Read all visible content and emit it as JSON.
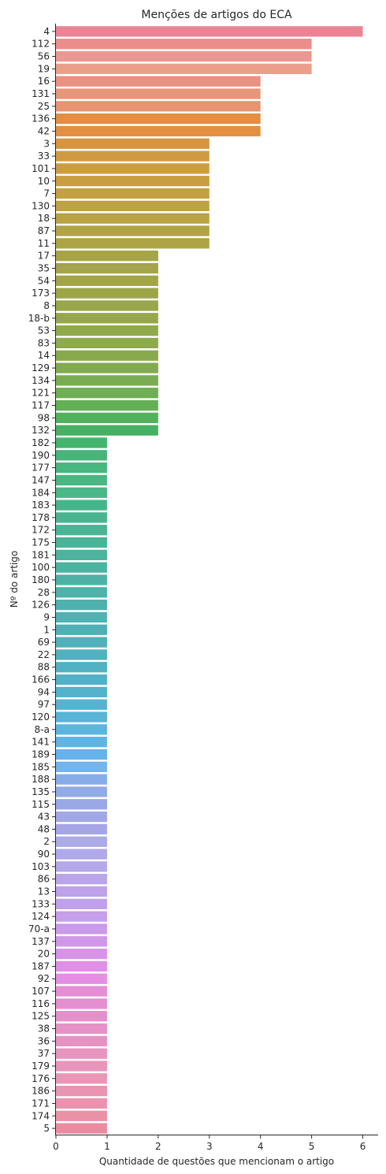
{
  "chart_data": {
    "type": "bar",
    "orientation": "horizontal",
    "title": "Menções de artigos do ECA",
    "xlabel": "Quantidade de questões que mencionam o artigo",
    "ylabel": "Nº do artigo",
    "xlim": [
      0,
      6.3
    ],
    "xticks": [
      0,
      1,
      2,
      3,
      4,
      5,
      6
    ],
    "grid": false,
    "categories": [
      "4",
      "112",
      "56",
      "19",
      "16",
      "131",
      "25",
      "136",
      "42",
      "3",
      "33",
      "101",
      "10",
      "7",
      "130",
      "18",
      "87",
      "11",
      "17",
      "35",
      "54",
      "173",
      "8",
      "18-b",
      "53",
      "83",
      "14",
      "129",
      "134",
      "121",
      "117",
      "98",
      "132",
      "182",
      "190",
      "177",
      "147",
      "184",
      "183",
      "178",
      "172",
      "175",
      "181",
      "100",
      "180",
      "28",
      "126",
      "9",
      "1",
      "69",
      "22",
      "88",
      "166",
      "94",
      "97",
      "120",
      "8-a",
      "141",
      "189",
      "185",
      "188",
      "135",
      "115",
      "43",
      "48",
      "2",
      "90",
      "103",
      "86",
      "13",
      "133",
      "124",
      "70-a",
      "137",
      "20",
      "187",
      "92",
      "107",
      "116",
      "125",
      "38",
      "36",
      "37",
      "179",
      "176",
      "186",
      "171",
      "174",
      "5"
    ],
    "values": [
      6,
      5,
      5,
      5,
      4,
      4,
      4,
      4,
      4,
      3,
      3,
      3,
      3,
      3,
      3,
      3,
      3,
      3,
      2,
      2,
      2,
      2,
      2,
      2,
      2,
      2,
      2,
      2,
      2,
      2,
      2,
      2,
      2,
      1,
      1,
      1,
      1,
      1,
      1,
      1,
      1,
      1,
      1,
      1,
      1,
      1,
      1,
      1,
      1,
      1,
      1,
      1,
      1,
      1,
      1,
      1,
      1,
      1,
      1,
      1,
      1,
      1,
      1,
      1,
      1,
      1,
      1,
      1,
      1,
      1,
      1,
      1,
      1,
      1,
      1,
      1,
      1,
      1,
      1,
      1,
      1,
      1,
      1,
      1,
      1,
      1,
      1,
      1,
      1
    ],
    "colors": [
      "#ec8394",
      "#ed8d8b",
      "#ea9891",
      "#eb9e8a",
      "#e99182",
      "#e8967a",
      "#e69570",
      "#e48e42",
      "#e48e42",
      "#d6953f",
      "#d09b40",
      "#cc9d40",
      "#c99e40",
      "#c5a041",
      "#bfa241",
      "#b9a342",
      "#b3a443",
      "#aea445",
      "#a6a444",
      "#a3a44b",
      "#a1a548",
      "#9da647",
      "#99a649",
      "#95a74a",
      "#91a94c",
      "#8daa4c",
      "#88aa4d",
      "#82ab50",
      "#7aac52",
      "#6fae54",
      "#63b055",
      "#52b15a",
      "#48b062",
      "#44b46d",
      "#47b579",
      "#48b67f",
      "#49b783",
      "#4ab788",
      "#48b48c",
      "#4ab490",
      "#4ab494",
      "#4bb397",
      "#4db39c",
      "#4db3a1",
      "#4db2a5",
      "#4db2a9",
      "#4fb1ae",
      "#50b2b3",
      "#4fb0b5",
      "#51b1ba",
      "#51b1be",
      "#52b1c2",
      "#52b1c7",
      "#54b2cb",
      "#55b3d1",
      "#58b5d8",
      "#5bb6df",
      "#60b4e5",
      "#66b2ea",
      "#72b4ec",
      "#86ade8",
      "#91abe6",
      "#9aa8e6",
      "#a2a7e6",
      "#a6a6e6",
      "#ababe7",
      "#afa9ea",
      "#b4a7ea",
      "#b9a5eb",
      "#bda2ea",
      "#c0a0ea",
      "#c59fe9",
      "#c99be9",
      "#cf97e8",
      "#d793e7",
      "#df8fe6",
      "#e48fe3",
      "#e58ed5",
      "#e48fd0",
      "#e590cb",
      "#e692c6",
      "#e693c3",
      "#e794bf",
      "#e895bb",
      "#e996b7",
      "#ea93b2",
      "#ea92ae",
      "#ea91a8",
      "#ec8aa0"
    ]
  }
}
